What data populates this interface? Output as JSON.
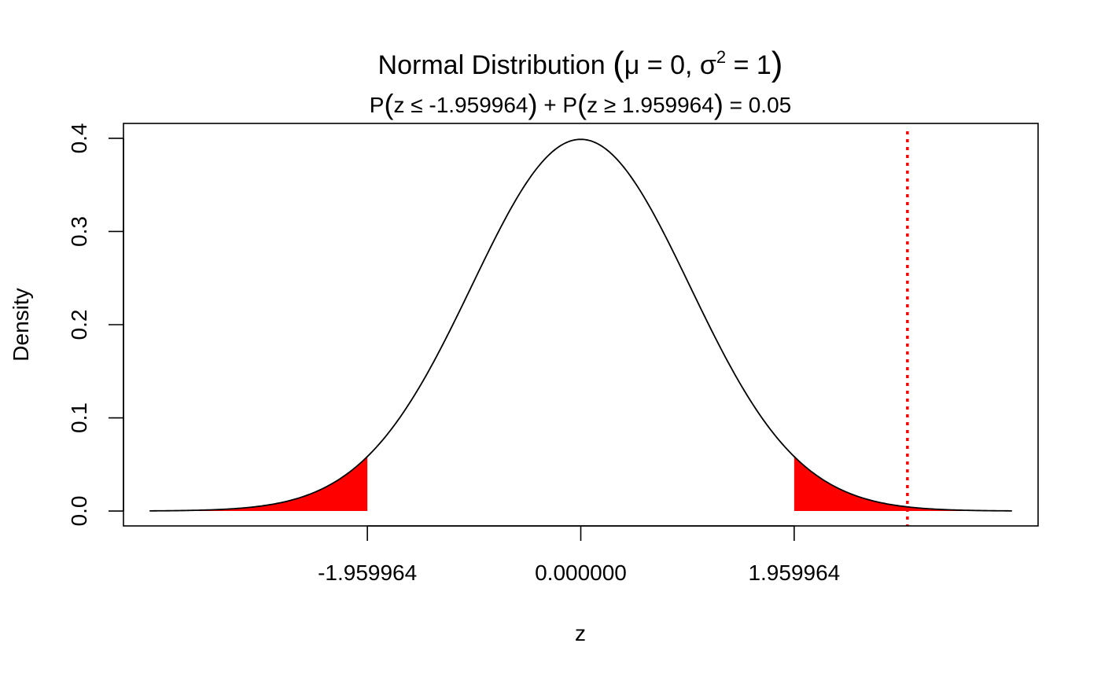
{
  "chart_data": {
    "type": "area",
    "title": {
      "prefix": "Normal Distribution",
      "open_paren": "(",
      "params": "μ = 0, σ",
      "sup": "2",
      "params_end": " = 1",
      "close_paren": ")"
    },
    "subtitle": {
      "p1": "P",
      "open1": "(",
      "inner1": "z ≤ -1.959964",
      "close1": ")",
      "plus": " + P",
      "open2": "(",
      "inner2": "z ≥ 1.959964",
      "close2": ")",
      "result": " = 0.05"
    },
    "xlabel": "z",
    "ylabel": "Density",
    "xlim": [
      -4.2,
      4.2
    ],
    "ylim": [
      -0.016,
      0.416
    ],
    "x_ticks": [
      {
        "value": -1.959964,
        "label": "-1.959964"
      },
      {
        "value": 0,
        "label": "0.000000"
      },
      {
        "value": 1.959964,
        "label": "1.959964"
      }
    ],
    "y_ticks": [
      {
        "value": 0.0,
        "label": "0.0"
      },
      {
        "value": 0.1,
        "label": "0.1"
      },
      {
        "value": 0.2,
        "label": "0.2"
      },
      {
        "value": 0.3,
        "label": "0.3"
      },
      {
        "value": 0.4,
        "label": "0.4"
      }
    ],
    "curve": {
      "distribution": "normal",
      "mean": 0,
      "variance": 1,
      "x_range": [
        -3.96,
        3.96
      ],
      "color": "#000000"
    },
    "shaded_regions": [
      {
        "from": -3.96,
        "to": -1.959964,
        "color": "#ff0000"
      },
      {
        "from": 1.959964,
        "to": 3.96,
        "color": "#ff0000"
      }
    ],
    "reference_line": {
      "x": 3.0,
      "color": "#ff0000",
      "style": "dotted"
    },
    "grid": false,
    "legend": "none"
  }
}
